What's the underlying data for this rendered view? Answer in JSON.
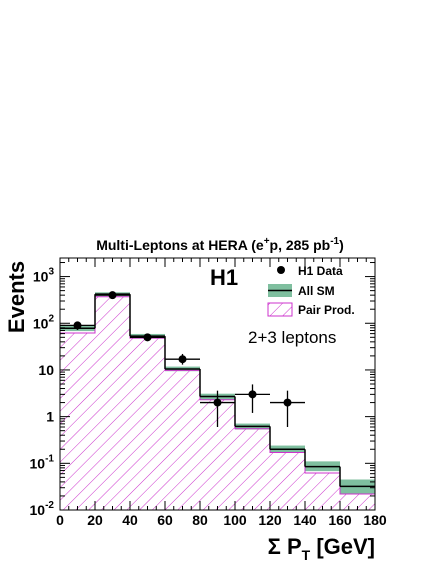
{
  "chart_data": {
    "type": "bar",
    "title_main": "Multi-Leptons at HERA (e",
    "title_sup": "+",
    "title_mid": "p, 285 pb",
    "title_sup2": "-1",
    "title_end": ")",
    "experiment_label": "H1",
    "annotation": "2+3 leptons",
    "ylabel": "Events",
    "xlabel_sigma": "Σ P",
    "xlabel_sub": "T",
    "xlabel_unit": " [GeV]",
    "xlim": [
      0,
      180
    ],
    "ylim": [
      0.01,
      2500
    ],
    "yscale": "log",
    "x_ticks": [
      "0",
      "20",
      "40",
      "60",
      "80",
      "100",
      "120",
      "140",
      "160",
      "180"
    ],
    "y_tick_labels": [
      {
        "base": "10",
        "exp": "-2"
      },
      {
        "base": "10",
        "exp": "-1"
      },
      {
        "base": "1",
        "exp": ""
      },
      {
        "base": "10",
        "exp": ""
      },
      {
        "base": "10",
        "exp": "2"
      },
      {
        "base": "10",
        "exp": "3"
      }
    ],
    "bin_edges": [
      0,
      20,
      40,
      60,
      80,
      100,
      120,
      140,
      160,
      180
    ],
    "series": [
      {
        "name": "H1 Data",
        "kind": "points",
        "x": [
          10,
          30,
          50,
          70,
          90,
          110,
          130
        ],
        "y": [
          90,
          400,
          50,
          17,
          2,
          3,
          2
        ],
        "y_low": [
          72,
          360,
          43,
          13,
          0.6,
          1.2,
          0.6
        ],
        "y_high": [
          108,
          440,
          57,
          22,
          3.6,
          4.9,
          3.6
        ]
      },
      {
        "name": "All SM",
        "kind": "histogram",
        "values": [
          78,
          420,
          53,
          10.5,
          2.7,
          0.62,
          0.2,
          0.085,
          0.032
        ],
        "band_low": [
          68,
          380,
          47,
          9.4,
          2.3,
          0.53,
          0.17,
          0.068,
          0.022
        ],
        "band_high": [
          90,
          460,
          59,
          11.8,
          3.1,
          0.71,
          0.24,
          0.11,
          0.045
        ],
        "color": "#2e8b57"
      },
      {
        "name": "Pair Prod.",
        "kind": "hatched_histogram",
        "values": [
          62,
          370,
          48,
          9.8,
          2.3,
          0.55,
          0.17,
          0.062,
          0.022
        ],
        "color": "#cc33cc"
      }
    ],
    "legend_position": "top-right"
  }
}
